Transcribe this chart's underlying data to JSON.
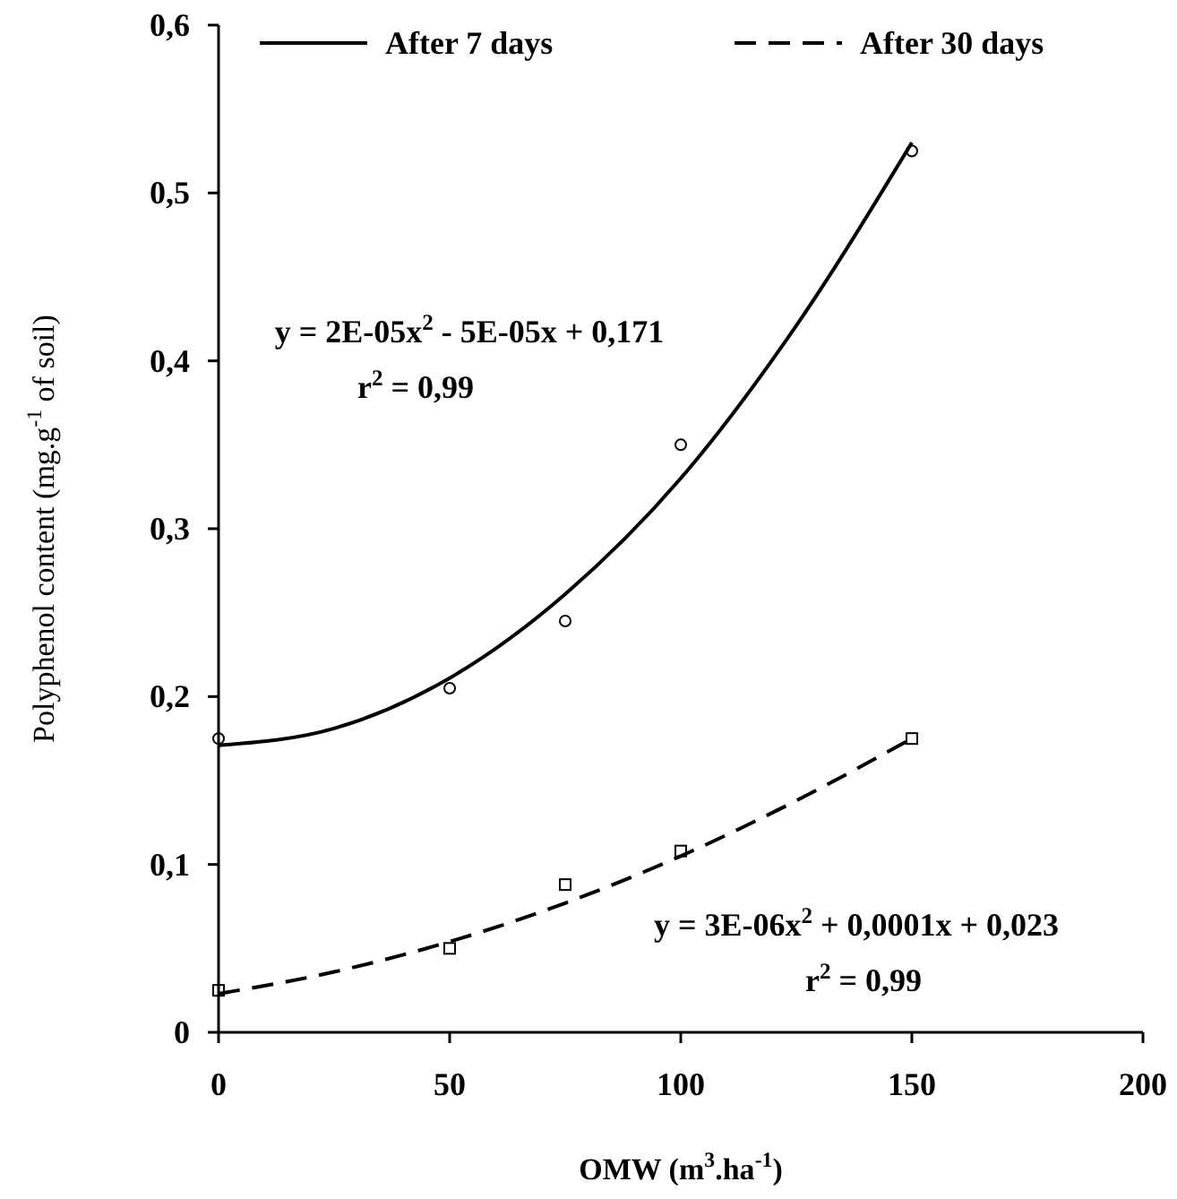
{
  "chart_data": {
    "type": "scatter",
    "xlabel": "OMW (m$^{3}$.ha$^{-1}$)",
    "ylabel": "Polyphenol content (mg.g$^{-1}$ of soil)",
    "xlim": [
      0,
      200
    ],
    "xticks": [
      0,
      50,
      100,
      150,
      200
    ],
    "ylim": [
      0,
      0.6
    ],
    "yticks": [
      0,
      {
        "value": 0.1,
        "label": "0,1"
      },
      {
        "value": 0.2,
        "label": "0,2"
      },
      {
        "value": 0.3,
        "label": "0,3"
      },
      {
        "value": 0.4,
        "label": "0,4"
      },
      {
        "value": 0.5,
        "label": "0,5"
      },
      {
        "value": 0.6,
        "label": "0,6"
      }
    ],
    "grid": false,
    "legend": "top",
    "series": [
      {
        "color": "#000000",
        "marker": "circle",
        "x": [
          0,
          50,
          75,
          100,
          150
        ],
        "values": [
          0.175,
          0.205,
          0.245,
          0.35,
          0.525
        ]
      },
      {
        "color": "#000000",
        "marker": "square",
        "x": [
          0,
          50,
          75,
          100,
          150
        ],
        "values": [
          0.025,
          0.05,
          0.088,
          0.108,
          0.175
        ]
      },
      {
        "type": "line",
        "name": "After 7 days",
        "color": "#000000",
        "line_style": "solid",
        "marker": "none",
        "x": [
          0,
          25,
          50,
          75,
          100,
          125,
          150
        ],
        "values": [
          0.171,
          0.181,
          0.211,
          0.261,
          0.33,
          0.421,
          0.53
        ]
      },
      {
        "type": "line",
        "name": "After 30 days",
        "color": "#000000",
        "line_style": "dashed",
        "marker": "none",
        "x": [
          0,
          25,
          50,
          75,
          100,
          125,
          150
        ],
        "values": [
          0.023,
          0.036,
          0.054,
          0.077,
          0.105,
          0.138,
          0.175
        ]
      }
    ],
    "annotations": [
      "y = 2E-05x$^{2}$ - 5E-05x + 0,171",
      "r$^{2}$ = 0,99",
      "y = 3E-06x$^{2}$ + 0,0001x + 0,023",
      "r$^{2}$ = 0,99"
    ]
  }
}
